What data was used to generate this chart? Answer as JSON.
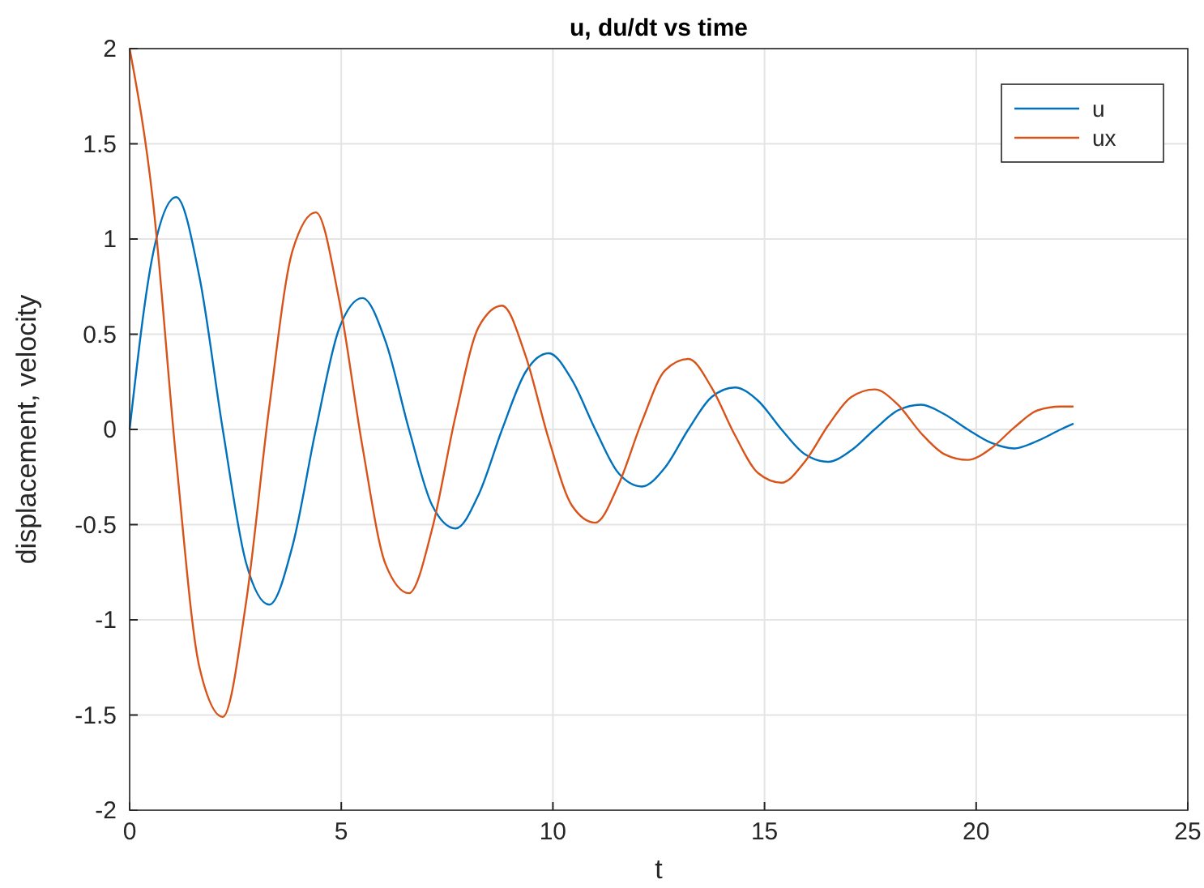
{
  "chart_data": {
    "type": "line",
    "title": "u, du/dt vs time",
    "xlabel": "t",
    "ylabel": "displacement, velocity",
    "x": [
      0,
      0.55,
      1.1,
      1.65,
      2.2,
      2.75,
      3.3,
      3.85,
      4.4,
      4.95,
      5.5,
      6.05,
      6.6,
      7.15,
      7.7,
      8.25,
      8.8,
      9.35,
      9.9,
      10.45,
      11,
      11.55,
      12.1,
      12.65,
      13.2,
      13.75,
      14.3,
      14.85,
      15.4,
      15.95,
      16.5,
      17.05,
      17.6,
      18.15,
      18.7,
      19.25,
      19.8,
      20.35,
      20.9,
      21.45,
      22,
      22.3
    ],
    "series": [
      {
        "name": "u",
        "color": "#0072bd",
        "values": [
          0,
          0.92,
          1.22,
          0.8,
          0,
          -0.7,
          -0.92,
          -0.61,
          0,
          0.53,
          0.69,
          0.46,
          0,
          -0.4,
          -0.52,
          -0.34,
          0,
          0.3,
          0.4,
          0.26,
          0,
          -0.23,
          -0.3,
          -0.2,
          0,
          0.17,
          0.22,
          0.15,
          0,
          -0.13,
          -0.17,
          -0.11,
          0,
          0.1,
          0.13,
          0.08,
          0,
          -0.07,
          -0.1,
          -0.06,
          0,
          0.03
        ]
      },
      {
        "name": "ux",
        "color": "#d95319",
        "values": [
          2,
          1.2,
          -0.16,
          -1.25,
          -1.51,
          -0.91,
          0.12,
          0.94,
          1.14,
          0.68,
          -0.09,
          -0.71,
          -0.86,
          -0.52,
          0.07,
          0.54,
          0.65,
          0.39,
          -0.05,
          -0.4,
          -0.49,
          -0.29,
          0.04,
          0.31,
          0.37,
          0.22,
          -0.03,
          -0.23,
          -0.28,
          -0.17,
          0.02,
          0.17,
          0.21,
          0.13,
          -0.02,
          -0.13,
          -0.16,
          -0.1,
          0.01,
          0.1,
          0.12,
          0.12
        ]
      }
    ],
    "xlim": [
      0,
      25
    ],
    "xticks": [
      0,
      5,
      10,
      15,
      20,
      25
    ],
    "ylim": [
      -2,
      2
    ],
    "yticks": [
      -2,
      -1.5,
      -1,
      -0.5,
      0,
      0.5,
      1,
      1.5,
      2
    ],
    "grid": true,
    "legend": "top right",
    "marker": "none",
    "line_style": "solid"
  }
}
